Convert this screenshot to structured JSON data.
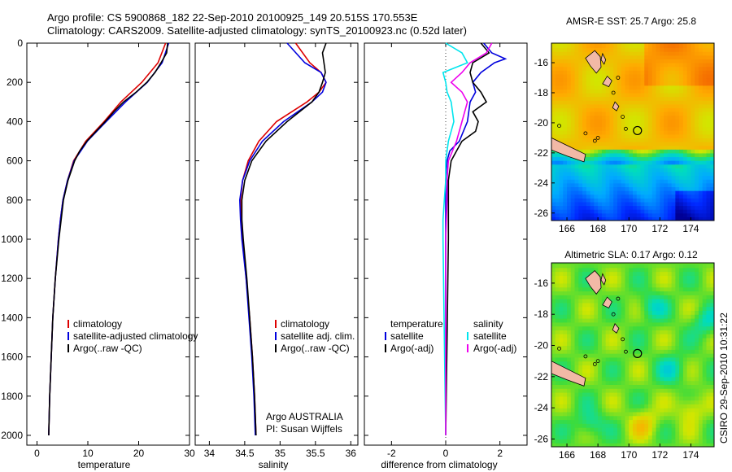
{
  "header": {
    "line1": "Argo profile: CS 5900868_182 22-Sep-2010 20100925_149 20.515S 170.553E",
    "line2": "Climatology: CARS2009. Satellite-adjusted climatology: synTS_20100923.nc (0.52d later)"
  },
  "side_stamp": "CSIRO 29-Sep-2010 10:31:22",
  "colors": {
    "climatology": "#dd0000",
    "satellite": "#0000dd",
    "argo": "#000000",
    "sal_satellite": "#00e5ee",
    "sal_argo": "#ee00ee",
    "coast_fill": "#f2b9a6"
  },
  "chart_data": [
    {
      "type": "line",
      "xlabel": "temperature",
      "xlim": [
        -2,
        30
      ],
      "ylim": [
        2050,
        0
      ],
      "xticks": [
        "0",
        "10",
        "20",
        "30"
      ],
      "yticks": [
        "0",
        "200",
        "400",
        "600",
        "800",
        "1000",
        "1200",
        "1400",
        "1600",
        "1800",
        "2000"
      ],
      "legend": [
        "climatology",
        "satellite-adjusted climatology",
        "Argo(..raw -QC)"
      ],
      "series": [
        {
          "name": "climatology",
          "color": "#dd0000",
          "depth": [
            0,
            100,
            200,
            300,
            400,
            500,
            600,
            700,
            800,
            900,
            1000,
            1200,
            1400,
            1600,
            1800,
            2000
          ],
          "values": [
            25.3,
            23.8,
            20.6,
            16.5,
            13.2,
            9.6,
            7.2,
            6.0,
            5.1,
            4.6,
            4.2,
            3.6,
            3.1,
            2.8,
            2.5,
            2.3
          ]
        },
        {
          "name": "satellite-adjusted climatology",
          "color": "#0000dd",
          "depth": [
            0,
            100,
            200,
            300,
            400,
            500,
            600,
            700,
            800,
            900,
            1000,
            1200,
            1400,
            1600,
            1800,
            2000
          ],
          "values": [
            25.9,
            24.6,
            21.7,
            17.4,
            13.6,
            9.9,
            7.3,
            6.0,
            5.1,
            4.6,
            4.2,
            3.6,
            3.1,
            2.8,
            2.5,
            2.3
          ]
        },
        {
          "name": "Argo(..raw -QC)",
          "color": "#000000",
          "depth": [
            0,
            50,
            100,
            150,
            200,
            250,
            300,
            350,
            400,
            450,
            500,
            550,
            600,
            700,
            800,
            1000,
            1200,
            1400,
            1600,
            1800,
            2000
          ],
          "values": [
            25.7,
            25.5,
            24.4,
            23.2,
            21.6,
            19.5,
            17.0,
            15.1,
            13.4,
            11.6,
            9.8,
            8.4,
            7.4,
            6.1,
            5.2,
            4.3,
            3.6,
            3.1,
            2.8,
            2.5,
            2.3
          ]
        }
      ]
    },
    {
      "type": "line",
      "xlabel": "salinity",
      "xlim": [
        33.8,
        36.1
      ],
      "ylim": [
        2050,
        0
      ],
      "xticks": [
        "34",
        "34.5",
        "35",
        "35.5",
        "36"
      ],
      "legend": [
        "climatology",
        "satellite adj. clim.",
        "Argo(..raw -QC)"
      ],
      "annotation": [
        "Argo AUSTRALIA",
        "PI: Susan Wijffels"
      ],
      "series": [
        {
          "name": "climatology",
          "color": "#dd0000",
          "depth": [
            0,
            100,
            150,
            200,
            250,
            300,
            400,
            500,
            600,
            700,
            800,
            900,
            1000,
            1200,
            1400,
            1600,
            1800,
            2000
          ],
          "values": [
            35.22,
            35.42,
            35.58,
            35.65,
            35.55,
            35.38,
            34.95,
            34.7,
            34.55,
            34.47,
            34.44,
            34.45,
            34.47,
            34.52,
            34.57,
            34.61,
            34.64,
            34.66
          ]
        },
        {
          "name": "satellite adj. clim.",
          "color": "#0000dd",
          "depth": [
            0,
            100,
            150,
            200,
            250,
            300,
            400,
            500,
            600,
            700,
            800,
            900,
            1000,
            1200,
            1400,
            1600,
            1800,
            2000
          ],
          "values": [
            35.1,
            35.35,
            35.58,
            35.65,
            35.6,
            35.45,
            35.05,
            34.75,
            34.57,
            34.47,
            34.43,
            34.44,
            34.46,
            34.52,
            34.56,
            34.6,
            34.63,
            34.65
          ]
        },
        {
          "name": "Argo(..raw -QC)",
          "color": "#000000",
          "depth": [
            0,
            50,
            100,
            150,
            200,
            250,
            300,
            400,
            500,
            600,
            700,
            800,
            900,
            1000,
            1200,
            1400,
            1600,
            1800,
            2000
          ],
          "values": [
            35.65,
            35.6,
            35.62,
            35.64,
            35.6,
            35.55,
            35.45,
            35.1,
            34.8,
            34.6,
            34.5,
            34.46,
            34.46,
            34.48,
            34.53,
            34.57,
            34.61,
            34.64,
            34.66
          ]
        }
      ]
    },
    {
      "type": "line",
      "xlabel": "difference from climatology",
      "xlim": [
        -3,
        3
      ],
      "ylim": [
        2050,
        0
      ],
      "xticks": [
        "-2",
        "0",
        "2"
      ],
      "legend_columns": [
        {
          "title": "temperature",
          "entries": [
            "satellite",
            "Argo(-adj)"
          ]
        },
        {
          "title": "salinity",
          "entries": [
            "satellite",
            "Argo(-adj)"
          ]
        }
      ],
      "series": [
        {
          "name": "temperature satellite",
          "color": "#0000dd",
          "depth": [
            0,
            50,
            80,
            100,
            150,
            200,
            250,
            300,
            400,
            500,
            550,
            600,
            700,
            800,
            1000,
            1500,
            2000
          ],
          "values": [
            1.4,
            1.7,
            2.2,
            1.8,
            1.3,
            1.0,
            1.1,
            0.9,
            0.8,
            0.5,
            0.15,
            0.05,
            0.0,
            0.0,
            0.0,
            0.0,
            0.0
          ]
        },
        {
          "name": "temperature Argo(-adj)",
          "color": "#000000",
          "depth": [
            0,
            50,
            100,
            150,
            200,
            250,
            300,
            350,
            400,
            450,
            500,
            550,
            600,
            700,
            800,
            1000,
            1500,
            2000
          ],
          "values": [
            1.3,
            1.6,
            1.0,
            0.9,
            1.0,
            1.3,
            1.5,
            1.0,
            1.2,
            1.1,
            0.6,
            0.4,
            0.2,
            0.1,
            0.1,
            0.1,
            0.05,
            0.0
          ]
        },
        {
          "name": "salinity satellite",
          "color": "#00e5ee",
          "depth": [
            0,
            50,
            100,
            150,
            200,
            250,
            300,
            400,
            500,
            600,
            700,
            800,
            900,
            1000,
            1500,
            2000
          ],
          "values": [
            0.0,
            0.6,
            0.8,
            -0.1,
            0.0,
            0.05,
            0.2,
            0.3,
            0.1,
            0.0,
            0.0,
            -0.05,
            -0.1,
            -0.1,
            -0.05,
            0.0
          ]
        },
        {
          "name": "salinity Argo(-adj)",
          "color": "#ee00ee",
          "depth": [
            0,
            50,
            100,
            150,
            200,
            250,
            300,
            400,
            500,
            600,
            700,
            800,
            1000,
            1500,
            2000
          ],
          "values": [
            1.7,
            1.5,
            0.9,
            0.6,
            0.2,
            0.6,
            0.8,
            0.6,
            0.4,
            0.1,
            0.05,
            0.05,
            0.0,
            0.0,
            0.0
          ]
        }
      ]
    },
    {
      "type": "heatmap",
      "title": "AMSR-E SST: 25.7 Argo: 25.8",
      "xlim": [
        165,
        175.5
      ],
      "ylim": [
        -26.5,
        -14.7
      ],
      "xticks": [
        "166",
        "168",
        "170",
        "172",
        "174"
      ],
      "yticks": [
        "-16",
        "-18",
        "-20",
        "-22",
        "-24",
        "-26"
      ],
      "argo_position": {
        "lon": 170.553,
        "lat": -20.515
      }
    },
    {
      "type": "heatmap",
      "title": "Altimetric SLA: 0.17 Argo: 0.12",
      "xlim": [
        165,
        175.5
      ],
      "ylim": [
        -26.5,
        -14.7
      ],
      "xticks": [
        "166",
        "168",
        "170",
        "172",
        "174"
      ],
      "yticks": [
        "-16",
        "-18",
        "-20",
        "-22",
        "-24",
        "-26"
      ],
      "argo_position": {
        "lon": 170.553,
        "lat": -20.515
      }
    }
  ]
}
